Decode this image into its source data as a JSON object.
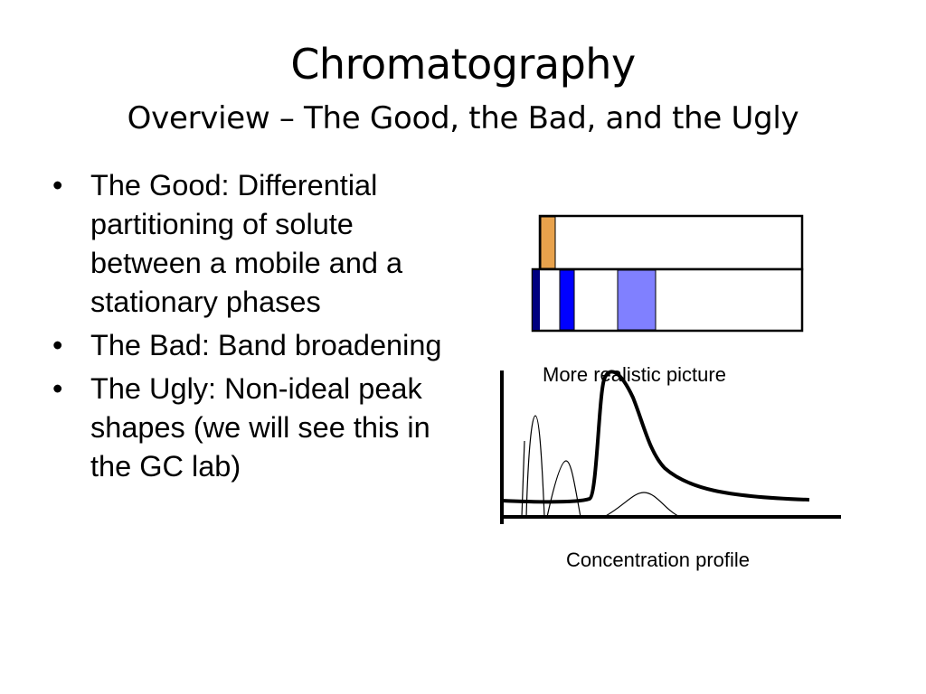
{
  "slide": {
    "title": "Chromatography",
    "subtitle": "Overview – The Good, the Bad, and the Ugly",
    "bullet_marker": "•",
    "bullets": [
      "The Good: Differential partitioning of solute between a mobile and a stationary phases",
      "The Bad: Band broadening",
      "The Ugly: Non-ideal peak shapes (we will see this in the GC lab)"
    ]
  },
  "figure": {
    "caption_realistic": "More realistic picture",
    "caption_profile": "Concentration profile",
    "colors": {
      "outline": "#000000",
      "initial_band": "#E8A24C",
      "band_dark": "#00007F",
      "band_blue": "#0000FF",
      "band_light": "#8080FF"
    }
  }
}
